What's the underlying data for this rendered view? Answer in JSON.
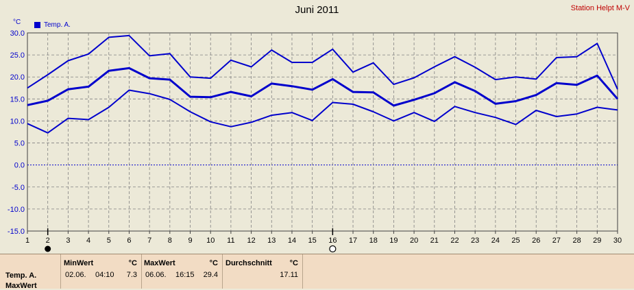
{
  "header": {
    "title": "Juni 2011",
    "station": "Station Helpt M-V",
    "unit": "°C",
    "legend": "Temp. A."
  },
  "colors": {
    "series": "#0000cc",
    "plot_bg": "#ece9d8",
    "grid": "#808080"
  },
  "chart_data": {
    "type": "line",
    "title": "Juni 2011",
    "ylabel": "°C",
    "xlabel": "",
    "ylim": [
      -15,
      30
    ],
    "yticks": [
      "30.0",
      "25.0",
      "20.0",
      "15.0",
      "10.0",
      "5.0",
      "0.0",
      "-5.0",
      "-10.0",
      "-15.0"
    ],
    "x": [
      1,
      2,
      3,
      4,
      5,
      6,
      7,
      8,
      9,
      10,
      11,
      12,
      13,
      14,
      15,
      16,
      17,
      18,
      19,
      20,
      21,
      22,
      23,
      24,
      25,
      26,
      27,
      28,
      29,
      30
    ],
    "grid": true,
    "legend": "top-left",
    "series": [
      {
        "name": "Temp. A.",
        "values": [
          13.6,
          14.6,
          17.2,
          17.8,
          21.4,
          22.0,
          19.7,
          19.4,
          15.5,
          15.4,
          16.6,
          15.6,
          18.5,
          17.9,
          17.1,
          19.5,
          16.6,
          16.5,
          13.5,
          14.8,
          16.3,
          18.8,
          16.8,
          13.9,
          14.5,
          15.9,
          18.6,
          18.2,
          20.3,
          15.0
        ]
      },
      {
        "values": [
          17.5,
          20.5,
          23.7,
          25.2,
          29.0,
          29.4,
          24.8,
          25.3,
          20.0,
          19.7,
          23.8,
          22.3,
          26.1,
          23.3,
          23.3,
          26.3,
          21.1,
          23.2,
          18.3,
          19.8,
          22.3,
          24.6,
          22.2,
          19.4,
          20.0,
          19.5,
          24.4,
          24.6,
          27.6,
          17.2
        ]
      },
      {
        "values": [
          9.4,
          7.3,
          10.6,
          10.3,
          13.1,
          17.0,
          16.2,
          14.9,
          12.1,
          9.8,
          8.7,
          9.7,
          11.3,
          11.9,
          10.1,
          14.2,
          13.8,
          12.1,
          10.0,
          11.9,
          9.9,
          13.3,
          11.9,
          10.8,
          9.2,
          12.4,
          11.0,
          11.6,
          13.1,
          12.5
        ]
      }
    ],
    "reference_line": 0
  },
  "stats": {
    "row_label": "Temp. A.",
    "row_label2": "MaxWert",
    "min": {
      "header": "MinWert",
      "unit": "°C",
      "date": "02.06.",
      "time": "04:10",
      "value": "7.3"
    },
    "max": {
      "header": "MaxWert",
      "unit": "°C",
      "date": "06.06.",
      "time": "16:15",
      "value": "29.4"
    },
    "avg": {
      "header": "Durchschnitt",
      "unit": "°C",
      "value": "17.11"
    }
  }
}
